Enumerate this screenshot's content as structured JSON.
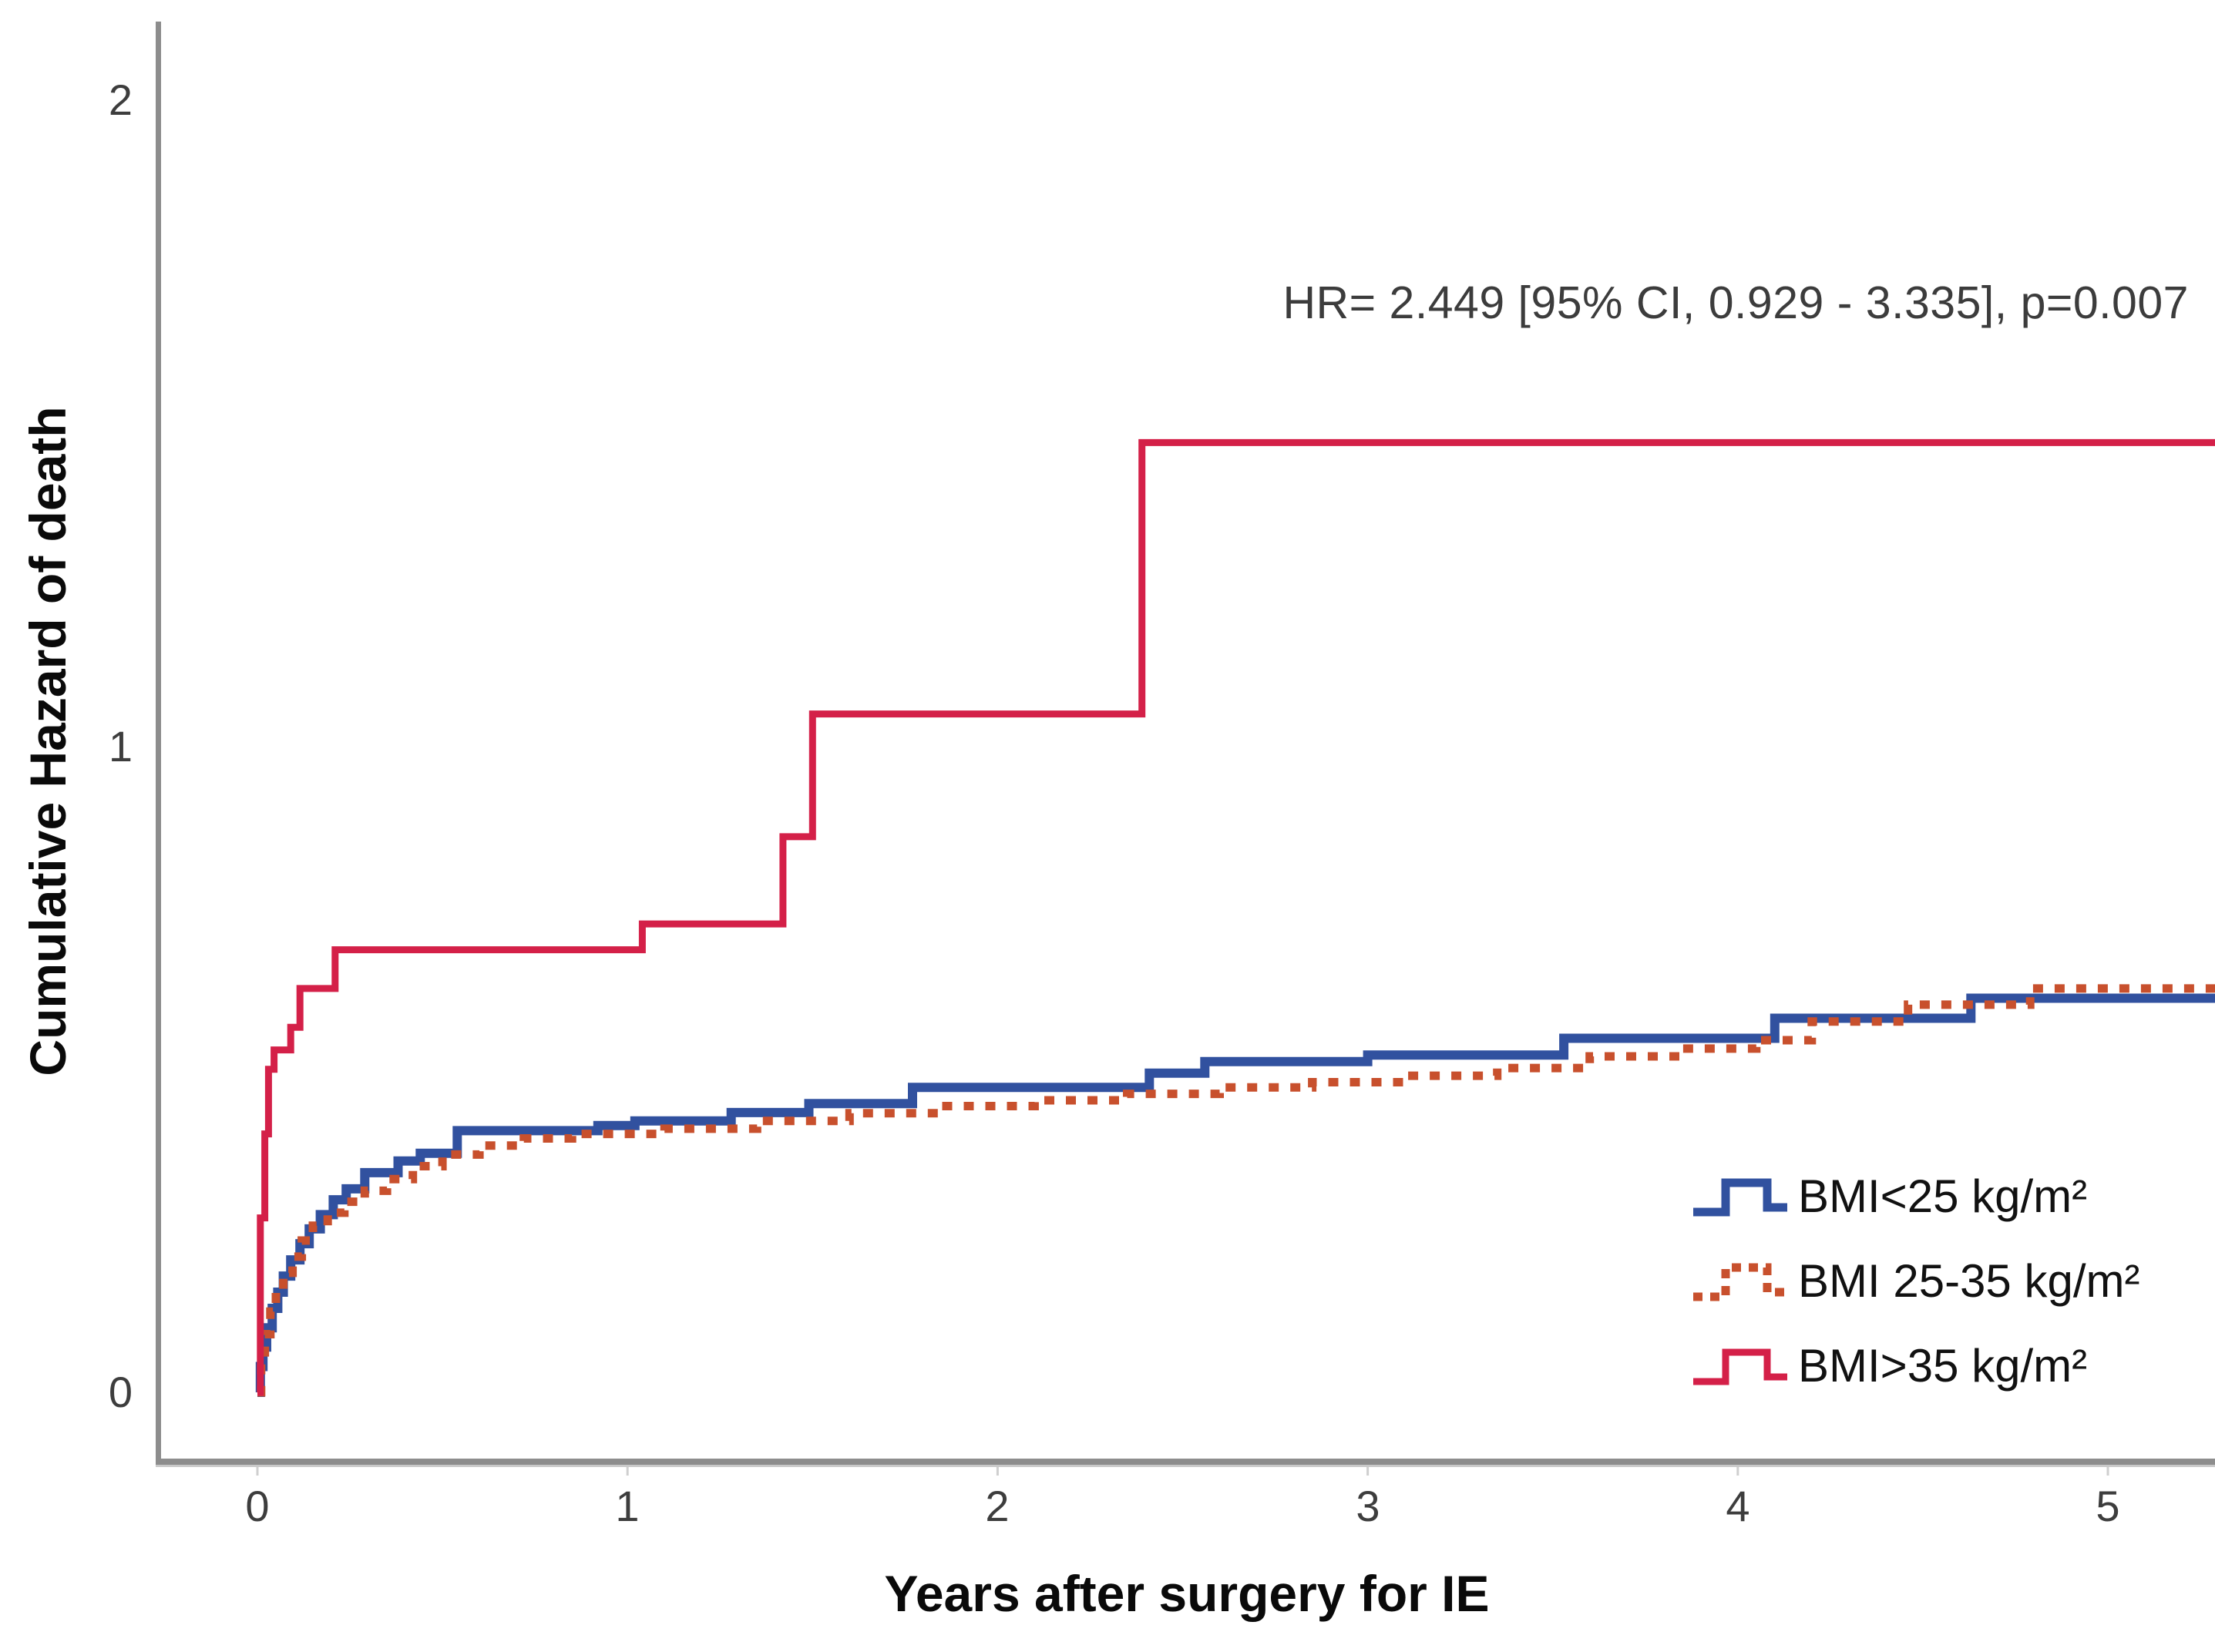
{
  "annotation": "HR= 2.449 [95% CI, 0.929 - 3.335], p=0.007",
  "y_axis": {
    "title": "Cumulative Hazard of death",
    "ticks": [
      "0",
      "1",
      "2"
    ]
  },
  "x_axis": {
    "title": "Years after surgery for IE",
    "ticks": [
      "0",
      "1",
      "2",
      "3",
      "4",
      "5"
    ]
  },
  "legend": [
    {
      "label": "BMI<25 kg/m²",
      "color": "#31519F",
      "style": "solid"
    },
    {
      "label": "BMI 25-35 kg/m²",
      "color": "#C8502D",
      "style": "dotted"
    },
    {
      "label": "BMI>35 kg/m²",
      "color": "#D42048",
      "style": "solid"
    }
  ],
  "chart_data": {
    "type": "line",
    "subtype": "step-function-cumulative-hazard",
    "title": "",
    "xlabel": "Years after surgery for IE",
    "ylabel": "Cumulative Hazard of death",
    "xlim": [
      -0.27,
      5.29
    ],
    "ylim": [
      0,
      2.12
    ],
    "x_ticks": [
      0,
      1,
      2,
      3,
      4,
      5
    ],
    "y_ticks": [
      0,
      1,
      2
    ],
    "grid": false,
    "legend_position": "lower right inside",
    "annotation": "HR= 2.449 [95% CI, 0.929 - 3.335], p=0.007",
    "series": [
      {
        "name": "BMI<25 kg/m²",
        "color": "#31519F",
        "line": "solid",
        "width": 12,
        "points": [
          [
            0,
            0
          ],
          [
            0.008,
            0.04
          ],
          [
            0.015,
            0.07
          ],
          [
            0.025,
            0.1
          ],
          [
            0.04,
            0.13
          ],
          [
            0.055,
            0.155
          ],
          [
            0.07,
            0.18
          ],
          [
            0.09,
            0.205
          ],
          [
            0.115,
            0.23
          ],
          [
            0.14,
            0.253
          ],
          [
            0.17,
            0.275
          ],
          [
            0.205,
            0.298
          ],
          [
            0.24,
            0.315
          ],
          [
            0.29,
            0.34
          ],
          [
            0.38,
            0.358
          ],
          [
            0.44,
            0.37
          ],
          [
            0.54,
            0.405
          ],
          [
            0.92,
            0.413
          ],
          [
            1.02,
            0.42
          ],
          [
            1.28,
            0.433
          ],
          [
            1.49,
            0.447
          ],
          [
            1.77,
            0.472
          ],
          [
            2.41,
            0.494
          ],
          [
            2.56,
            0.512
          ],
          [
            3.0,
            0.522
          ],
          [
            3.53,
            0.548
          ],
          [
            4.1,
            0.579
          ],
          [
            4.63,
            0.61
          ],
          [
            5.29,
            0.61
          ]
        ]
      },
      {
        "name": "BMI 25-35 kg/m²",
        "color": "#C8502D",
        "line": "dotted",
        "width": 11,
        "points": [
          [
            0,
            0
          ],
          [
            0.01,
            0.05
          ],
          [
            0.02,
            0.09
          ],
          [
            0.035,
            0.125
          ],
          [
            0.05,
            0.155
          ],
          [
            0.07,
            0.185
          ],
          [
            0.095,
            0.21
          ],
          [
            0.12,
            0.235
          ],
          [
            0.15,
            0.258
          ],
          [
            0.19,
            0.278
          ],
          [
            0.235,
            0.295
          ],
          [
            0.29,
            0.312
          ],
          [
            0.35,
            0.33
          ],
          [
            0.42,
            0.35
          ],
          [
            0.5,
            0.368
          ],
          [
            0.6,
            0.382
          ],
          [
            0.72,
            0.393
          ],
          [
            0.85,
            0.4
          ],
          [
            1.1,
            0.408
          ],
          [
            1.35,
            0.42
          ],
          [
            1.6,
            0.432
          ],
          [
            1.85,
            0.443
          ],
          [
            2.1,
            0.452
          ],
          [
            2.35,
            0.462
          ],
          [
            2.6,
            0.472
          ],
          [
            2.85,
            0.48
          ],
          [
            3.1,
            0.49
          ],
          [
            3.35,
            0.502
          ],
          [
            3.6,
            0.52
          ],
          [
            3.85,
            0.532
          ],
          [
            4.05,
            0.545
          ],
          [
            4.2,
            0.574
          ],
          [
            4.46,
            0.6
          ],
          [
            4.79,
            0.625
          ],
          [
            5.29,
            0.625
          ]
        ]
      },
      {
        "name": "BMI>35 kg/m²",
        "color": "#D42048",
        "line": "solid",
        "width": 9,
        "points": [
          [
            0,
            0
          ],
          [
            0.008,
            0.27
          ],
          [
            0.02,
            0.4
          ],
          [
            0.03,
            0.5
          ],
          [
            0.045,
            0.53
          ],
          [
            0.09,
            0.565
          ],
          [
            0.115,
            0.625
          ],
          [
            0.21,
            0.685
          ],
          [
            1.04,
            0.725
          ],
          [
            1.42,
            0.86
          ],
          [
            1.5,
            1.05
          ],
          [
            2.39,
            1.47
          ],
          [
            5.29,
            1.47
          ]
        ]
      }
    ]
  }
}
